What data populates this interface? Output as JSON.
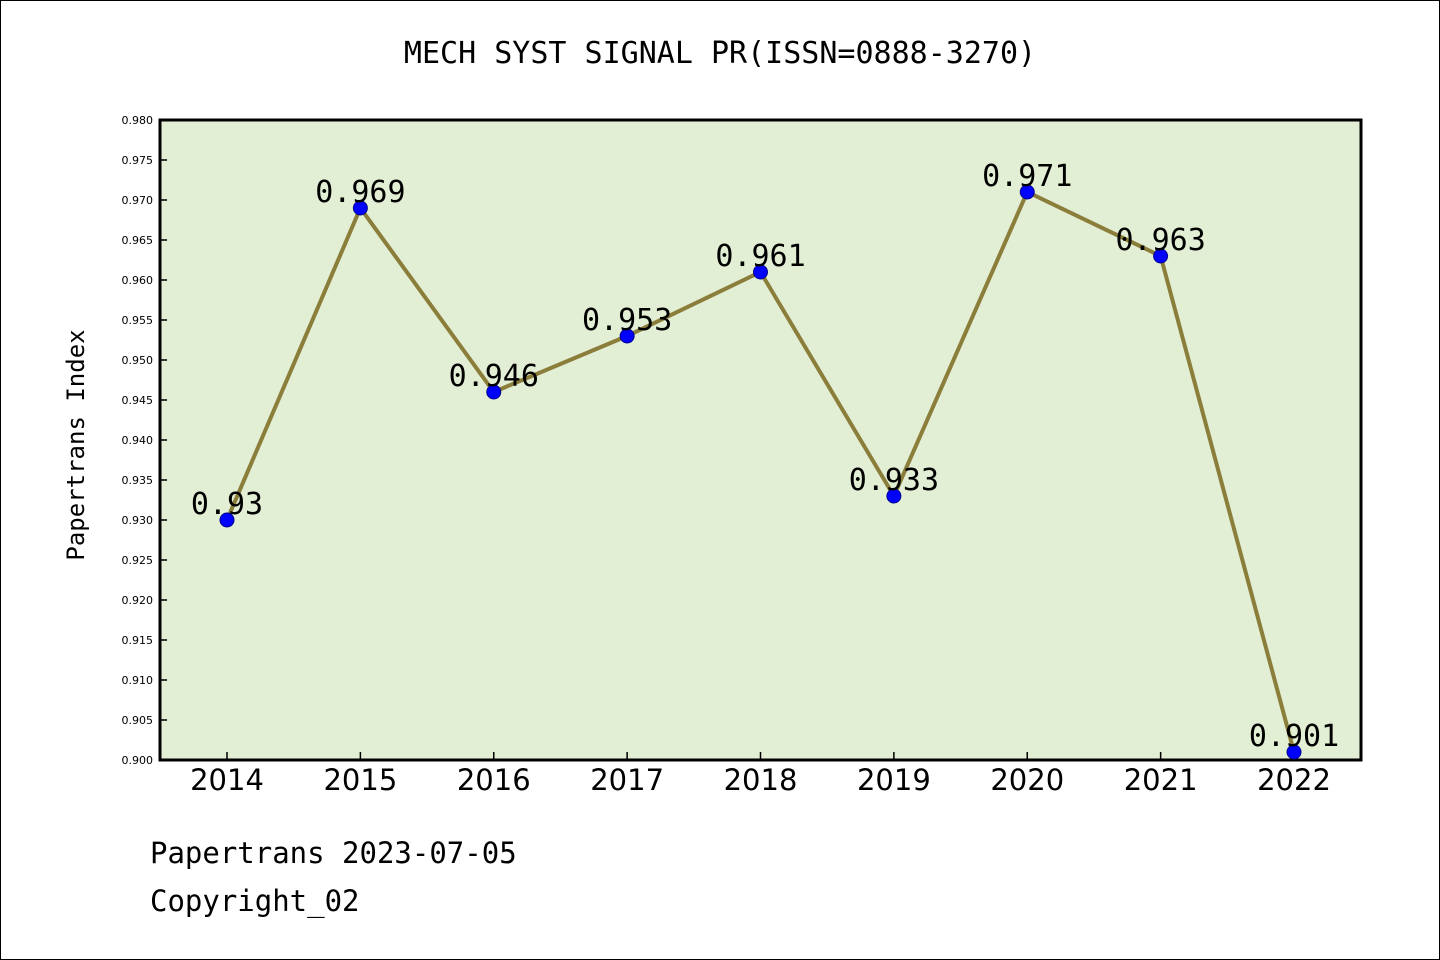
{
  "chart_data": {
    "type": "line",
    "title": "MECH SYST SIGNAL PR(ISSN=0888-3270)",
    "xlabel": "",
    "ylabel": "Papertrans Index",
    "categories": [
      "2014",
      "2015",
      "2016",
      "2017",
      "2018",
      "2019",
      "2020",
      "2021",
      "2022"
    ],
    "values": [
      0.93,
      0.969,
      0.946,
      0.953,
      0.961,
      0.933,
      0.971,
      0.963,
      0.901
    ],
    "data_labels": [
      "0.93",
      "0.969",
      "0.946",
      "0.953",
      "0.961",
      "0.933",
      "0.971",
      "0.963",
      "0.901"
    ],
    "ylim": [
      0.9,
      0.98
    ],
    "yticks": [
      "0.900",
      "0.905",
      "0.910",
      "0.915",
      "0.920",
      "0.925",
      "0.930",
      "0.935",
      "0.940",
      "0.945",
      "0.950",
      "0.955",
      "0.960",
      "0.965",
      "0.970",
      "0.975",
      "0.980"
    ],
    "grid": false,
    "legend": "none",
    "colors": {
      "plot_background": "#e2efd5",
      "line": "#8b7d3a",
      "marker": "#0000ff"
    }
  },
  "footer": {
    "line1": "Papertrans 2023-07-05",
    "line2": "Copyright_02"
  }
}
